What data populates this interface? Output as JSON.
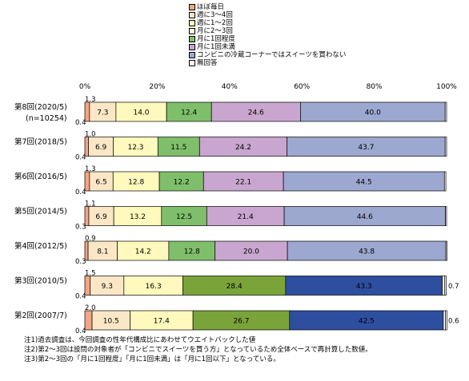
{
  "legend_items": [
    {
      "name": "ほぼ毎日",
      "color": "#f4a582"
    },
    {
      "name": "週に3～4回",
      "color": "#fbe7c6"
    },
    {
      "name": "週に1～2回",
      "color": "#fff9bd"
    },
    {
      "name": "月に2～3回",
      "color": "#fffde0"
    },
    {
      "name": "月に1回程度",
      "color": "#7fbf6b"
    },
    {
      "name": "月に1回未満",
      "color": "#c9a6d0"
    },
    {
      "name": "コンビニの冷蔵コーナーではスイーツを買わない",
      "color": "#9ca8d0"
    },
    {
      "name": "無回答",
      "color": "#ffffff"
    }
  ],
  "notes": [
    "注1)過去調査は、今回調査の性年代構成比にあわせてウエイトバックした値",
    "注2)第2～3回は設問の対象者が「コンビニでスイーツを買う方」となっているため全体ベースで再計算した数値。",
    "注3)第2～3回の「月に1回程度」「月に1回未満」は「月に1回以下」となっている。"
  ],
  "chart_data": {
    "type": "bar",
    "orientation": "horizontal",
    "stacked": "percent",
    "xlim": [
      0,
      100
    ],
    "x_ticks": [
      "0%",
      "20%",
      "40%",
      "60%",
      "80%",
      "100%"
    ],
    "categories": [
      {
        "label": "第8回(2020/5)",
        "sublabel": "(n=10254)"
      },
      {
        "label": "第7回(2018/5)",
        "sublabel": ""
      },
      {
        "label": "第6回(2016/5)",
        "sublabel": ""
      },
      {
        "label": "第5回(2014/5)",
        "sublabel": ""
      },
      {
        "label": "第4回(2012/5)",
        "sublabel": ""
      },
      {
        "label": "第3回(2010/5)",
        "sublabel": ""
      },
      {
        "label": "第2回(2007/7)",
        "sublabel": ""
      }
    ],
    "series": [
      {
        "name": "ほぼ毎日",
        "values": [
          1.3,
          1.0,
          1.3,
          1.1,
          0.9,
          1.5,
          2.0
        ]
      },
      {
        "name": "週に3～4回",
        "values": [
          7.3,
          6.9,
          6.5,
          6.9,
          8.1,
          9.3,
          10.5
        ]
      },
      {
        "name": "週に1～2回",
        "values": [
          14.0,
          12.3,
          12.8,
          13.2,
          14.2,
          16.3,
          17.4
        ]
      },
      {
        "name": "月に2～3回",
        "values": [
          12.4,
          11.5,
          12.2,
          12.5,
          12.8,
          28.4,
          26.7
        ]
      },
      {
        "name": "月に1回程度",
        "values": [
          24.6,
          24.2,
          22.1,
          21.4,
          20.0,
          null,
          null
        ]
      },
      {
        "name": "月に1回未満",
        "values": [
          40.0,
          43.7,
          44.5,
          44.6,
          43.8,
          43.3,
          42.5
        ]
      },
      {
        "name": "コンビニの冷蔵コーナーではスイーツを買わない",
        "values": [
          0.4,
          0.4,
          0.4,
          0.3,
          0.3,
          0.7,
          0.6
        ]
      },
      {
        "name": "無回答",
        "values": [
          null,
          null,
          null,
          null,
          null,
          null,
          null
        ]
      }
    ],
    "segment_colors": [
      [
        "#f4a582",
        "#fbe7c6",
        "#fff9bd",
        "#7fbf6b",
        "#c9a6d0",
        "#9ca8d0"
      ],
      [
        "#f4a582",
        "#fbe7c6",
        "#fff9bd",
        "#7fbf6b",
        "#c9a6d0",
        "#9ca8d0"
      ],
      [
        "#f4a582",
        "#fbe7c6",
        "#fff9bd",
        "#7fbf6b",
        "#c9a6d0",
        "#9ca8d0"
      ],
      [
        "#f4a582",
        "#fbe7c6",
        "#fff9bd",
        "#7fbf6b",
        "#c9a6d0",
        "#9ca8d0"
      ],
      [
        "#f4a582",
        "#fbe7c6",
        "#fff9bd",
        "#7fbf6b",
        "#c9a6d0",
        "#9ca8d0"
      ],
      [
        "#f4a582",
        "#fbe7c6",
        "#fff9bd",
        "#7aa43a",
        "#2e4ea0",
        "#ffffff"
      ],
      [
        "#f4a582",
        "#fbe7c6",
        "#fff9bd",
        "#7aa43a",
        "#2e4ea0",
        "#ffffff"
      ]
    ],
    "segment_values": [
      [
        1.3,
        7.3,
        14.0,
        12.4,
        24.6,
        40.0,
        0.4
      ],
      [
        1.0,
        6.9,
        12.3,
        11.5,
        24.2,
        43.7,
        0.4
      ],
      [
        1.3,
        6.5,
        12.8,
        12.2,
        22.1,
        44.5,
        0.4
      ],
      [
        1.1,
        6.9,
        13.2,
        12.5,
        21.4,
        44.6,
        0.3
      ],
      [
        0.9,
        8.1,
        14.2,
        12.8,
        20.0,
        43.8,
        0.3
      ],
      [
        1.5,
        9.3,
        16.3,
        28.4,
        43.3,
        0.7,
        0.4
      ],
      [
        2.0,
        10.5,
        17.4,
        26.7,
        42.5,
        0.6,
        0.4
      ]
    ],
    "inside_labels": [
      [
        "",
        "7.3",
        "14.0",
        "12.4",
        "24.6",
        "40.0"
      ],
      [
        "",
        "6.9",
        "12.3",
        "11.5",
        "24.2",
        "43.7"
      ],
      [
        "",
        "6.5",
        "12.8",
        "12.2",
        "22.1",
        "44.5"
      ],
      [
        "",
        "6.9",
        "13.2",
        "12.5",
        "21.4",
        "44.6"
      ],
      [
        "",
        "8.1",
        "14.2",
        "12.8",
        "20.0",
        "43.8"
      ],
      [
        "",
        "9.3",
        "16.3",
        "28.4",
        "43.3"
      ],
      [
        "",
        "10.5",
        "17.4",
        "26.7",
        "42.5"
      ]
    ],
    "above_left_labels": [
      "1.3",
      "1.0",
      "1.3",
      "1.1",
      "0.9",
      "1.5",
      "2.0"
    ],
    "below_left_labels": [
      "0.4",
      "0.4",
      "0.4",
      "0.3",
      "0.3",
      "0.4",
      "0.4"
    ],
    "right_labels": [
      "",
      "",
      "",
      "",
      "",
      "0.7",
      "0.6"
    ],
    "grid": false,
    "legend_position": "top"
  }
}
